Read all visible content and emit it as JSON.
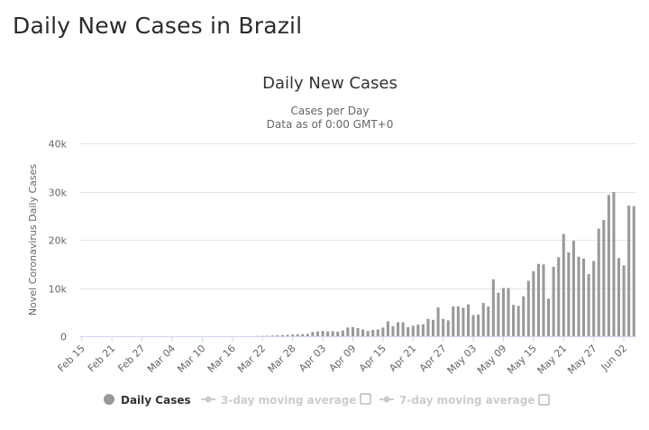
{
  "page": {
    "title": "Daily New Cases in Brazil"
  },
  "chart_data": {
    "type": "bar",
    "title": "Daily New Cases",
    "subtitle_line1": "Cases per Day",
    "subtitle_line2": "Data as of 0:00 GMT+0",
    "xlabel": "",
    "ylabel": "Novel Coronavirus Daily Cases",
    "ylim": [
      0,
      40000
    ],
    "y_ticks": [
      0,
      10000,
      20000,
      30000,
      40000
    ],
    "y_tick_labels": [
      "0",
      "10k",
      "20k",
      "30k",
      "40k"
    ],
    "x_tick_labels": [
      "Feb 15",
      "Feb 21",
      "Feb 27",
      "Mar 04",
      "Mar 10",
      "Mar 16",
      "Mar 22",
      "Mar 28",
      "Apr 03",
      "Apr 09",
      "Apr 15",
      "Apr 21",
      "Apr 27",
      "May 03",
      "May 09",
      "May 15",
      "May 21",
      "May 27",
      "Jun 02"
    ],
    "grid": true,
    "legend_position": "bottom",
    "start_date": "Feb 15",
    "series": [
      {
        "name": "Daily Cases",
        "color": "#999999",
        "values": [
          0,
          0,
          0,
          0,
          0,
          0,
          0,
          0,
          0,
          0,
          0,
          0,
          0,
          0,
          0,
          0,
          0,
          0,
          0,
          0,
          0,
          0,
          0,
          0,
          0,
          0,
          0,
          0,
          0,
          0,
          0,
          0,
          0,
          0,
          0,
          50,
          60,
          100,
          150,
          200,
          250,
          300,
          350,
          400,
          450,
          500,
          900,
          1000,
          1100,
          1000,
          1050,
          950,
          1200,
          1800,
          1900,
          1700,
          1400,
          1100,
          1300,
          1400,
          1800,
          3100,
          2100,
          2900,
          2900,
          1900,
          2200,
          2400,
          2500,
          3600,
          3400,
          6000,
          3600,
          3300,
          6200,
          6200,
          5900,
          6600,
          4400,
          4500,
          6900,
          6200,
          11800,
          9000,
          10000,
          10000,
          6500,
          6300,
          8300,
          11500,
          13500,
          15000,
          14900,
          7800,
          14400,
          16400,
          21200,
          17400,
          19800,
          16500,
          16100,
          12900,
          15600,
          22300,
          24100,
          29300,
          29900,
          16200,
          14700,
          27100,
          27000
        ]
      },
      {
        "name": "3-day moving average",
        "color": "#cccccc"
      },
      {
        "name": "7-day moving average",
        "color": "#cccccc"
      }
    ]
  }
}
